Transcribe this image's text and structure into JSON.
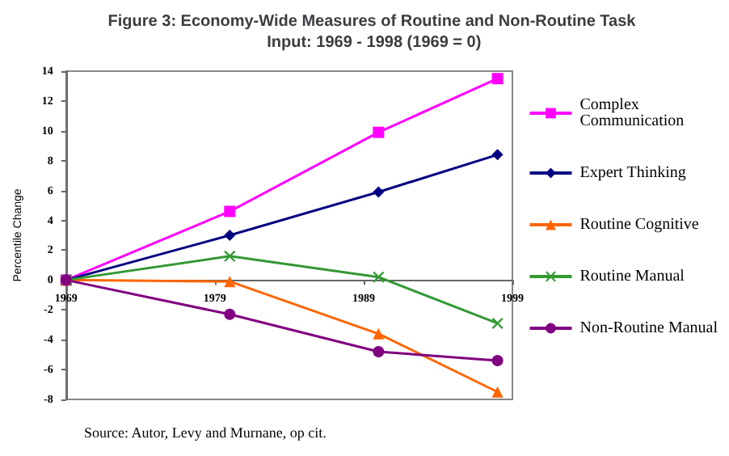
{
  "chart_data": {
    "type": "line",
    "title": "Figure 3: Economy-Wide Measures of Routine and Non-Routine Task Input: 1969 - 1998 (1969 = 0)",
    "ylabel": "Percentile Change",
    "annotations": [
      "Source: Autor, Levy and Murnane, op cit."
    ],
    "x": [
      1969,
      1980,
      1990,
      1998
    ],
    "xlim": [
      1969,
      1999
    ],
    "xticks": [
      1969,
      1979,
      1989,
      1999
    ],
    "ylim": [
      -8,
      14
    ],
    "yticks": [
      -8,
      -6,
      -4,
      -2,
      0,
      2,
      4,
      6,
      8,
      10,
      12,
      14
    ],
    "grid": false,
    "legend": "right",
    "series": [
      {
        "name": "Complex Communication",
        "color": "#ff00ff",
        "marker": "square",
        "values": [
          0,
          4.6,
          9.9,
          13.5
        ]
      },
      {
        "name": "Expert Thinking",
        "color": "#000080",
        "marker": "diamond",
        "values": [
          0,
          3.0,
          5.9,
          8.4
        ]
      },
      {
        "name": "Routine Cognitive",
        "color": "#ff6600",
        "marker": "triangle",
        "values": [
          0,
          -0.1,
          -3.6,
          -7.5
        ]
      },
      {
        "name": "Routine Manual",
        "color": "#339933",
        "marker": "cross",
        "values": [
          0,
          1.6,
          0.2,
          -2.9
        ]
      },
      {
        "name": "Non-Routine Manual",
        "color": "#800080",
        "marker": "circle",
        "values": [
          0,
          -2.3,
          -4.8,
          -5.4
        ]
      }
    ]
  }
}
